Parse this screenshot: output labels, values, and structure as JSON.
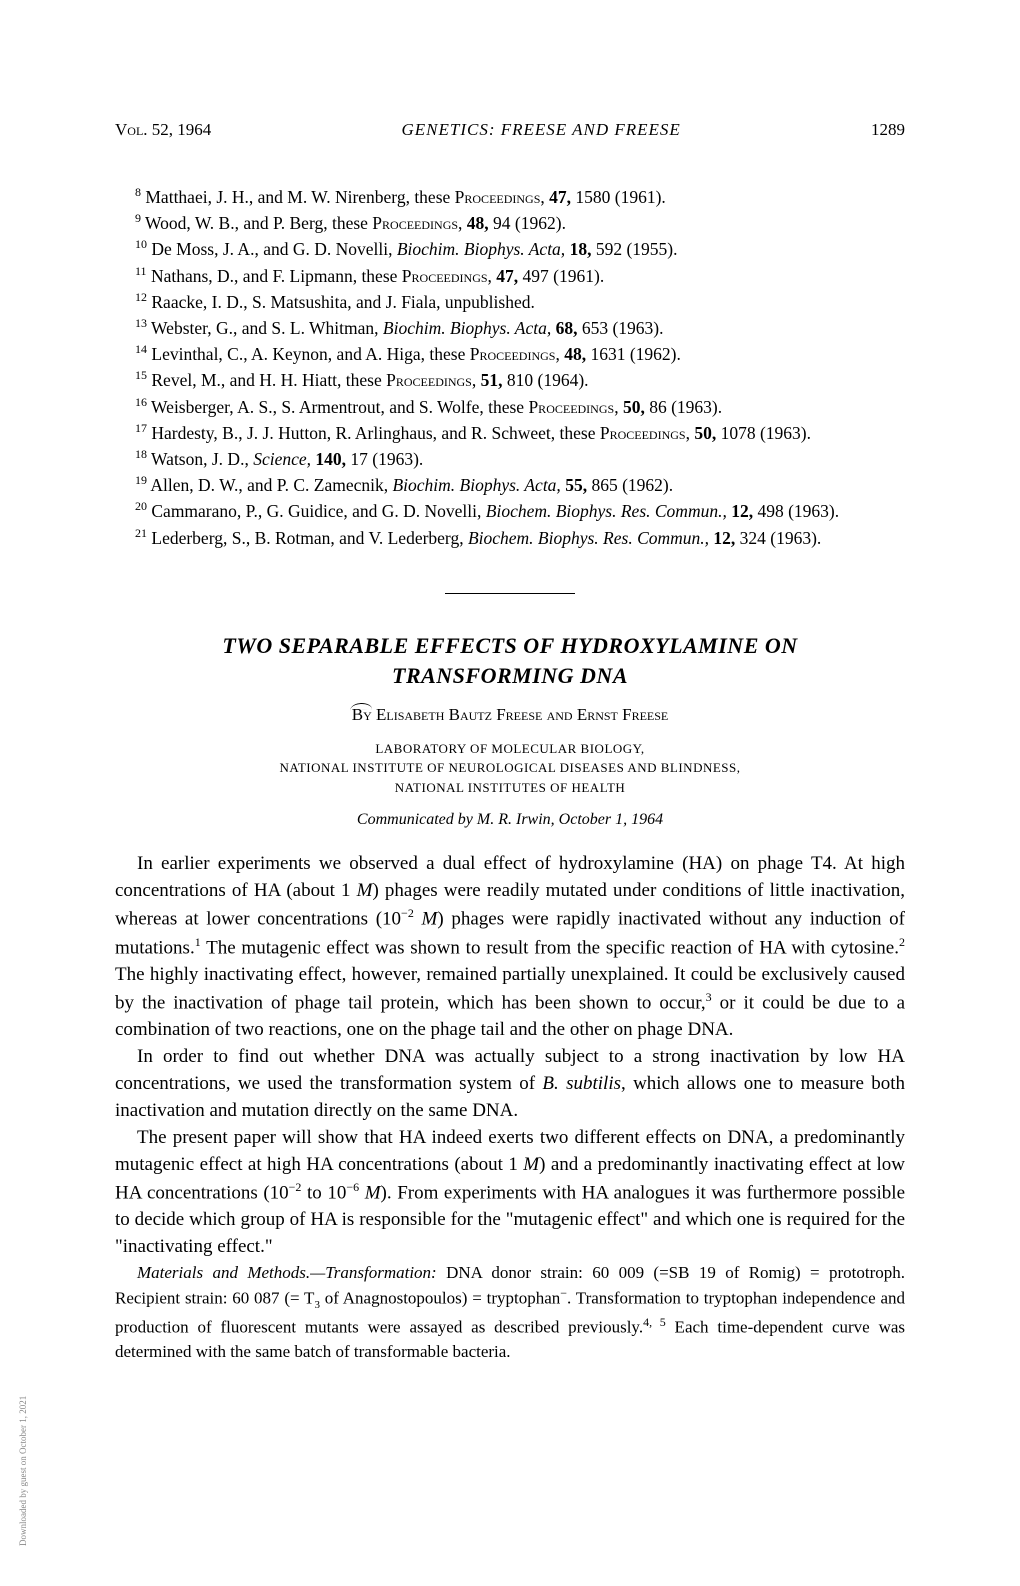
{
  "header": {
    "volume": "Vol. 52, 1964",
    "running_title": "GENETICS: FREESE AND FREESE",
    "page_number": "1289"
  },
  "references": [
    {
      "num": "8",
      "text": " Matthaei, J. H., and M. W. Nirenberg, these ",
      "smallcaps": "Proceedings",
      "suffix": ", ",
      "bold": "47,",
      "end": " 1580 (1961)."
    },
    {
      "num": "9",
      "text": " Wood, W. B., and P. Berg, these ",
      "smallcaps": "Proceedings",
      "suffix": ", ",
      "bold": "48,",
      "end": " 94 (1962)."
    },
    {
      "num": "10",
      "text": " De Moss, J. A., and G. D. Novelli, ",
      "italic": "Biochim. Biophys. Acta,",
      "suffix": " ",
      "bold": "18,",
      "end": " 592 (1955)."
    },
    {
      "num": "11",
      "text": " Nathans, D., and F. Lipmann, these ",
      "smallcaps": "Proceedings",
      "suffix": ", ",
      "bold": "47,",
      "end": " 497 (1961)."
    },
    {
      "num": "12",
      "text": " Raacke, I. D., S. Matsushita, and J. Fiala, unpublished.",
      "smallcaps": "",
      "suffix": "",
      "bold": "",
      "end": ""
    },
    {
      "num": "13",
      "text": " Webster, G., and S. L. Whitman, ",
      "italic": "Biochim. Biophys. Acta,",
      "suffix": " ",
      "bold": "68,",
      "end": " 653 (1963)."
    },
    {
      "num": "14",
      "text": " Levinthal, C., A. Keynon, and A. Higa, these ",
      "smallcaps": "Proceedings",
      "suffix": ", ",
      "bold": "48,",
      "end": " 1631 (1962)."
    },
    {
      "num": "15",
      "text": " Revel, M., and H. H. Hiatt, these ",
      "smallcaps": "Proceedings",
      "suffix": ", ",
      "bold": "51,",
      "end": " 810 (1964)."
    },
    {
      "num": "16",
      "text": " Weisberger, A. S., S. Armentrout, and S. Wolfe, these ",
      "smallcaps": "Proceedings",
      "suffix": ", ",
      "bold": "50,",
      "end": " 86 (1963)."
    },
    {
      "num": "17",
      "text": " Hardesty, B., J. J. Hutton, R. Arlinghaus, and R. Schweet, these ",
      "smallcaps": "Proceedings",
      "suffix": ", ",
      "bold": "50,",
      "end": " 1078 (1963)."
    },
    {
      "num": "18",
      "text": " Watson, J. D., ",
      "italic": "Science,",
      "suffix": " ",
      "bold": "140,",
      "end": " 17 (1963)."
    },
    {
      "num": "19",
      "text": " Allen, D. W., and P. C. Zamecnik, ",
      "italic": "Biochim. Biophys. Acta,",
      "suffix": " ",
      "bold": "55,",
      "end": " 865 (1962)."
    },
    {
      "num": "20",
      "text": " Cammarano, P., G. Guidice, and G. D. Novelli, ",
      "italic": "Biochem. Biophys. Res. Commun.,",
      "suffix": " ",
      "bold": "12,",
      "end": " 498 (1963)."
    },
    {
      "num": "21",
      "text": " Lederberg, S., B. Rotman, and V. Lederberg, ",
      "italic": "Biochem. Biophys. Res. Commun.,",
      "suffix": " ",
      "bold": "12,",
      "end": " 324 (1963)."
    }
  ],
  "article": {
    "title_line1": "TWO SEPARABLE EFFECTS OF HYDROXYLAMINE ON",
    "title_line2": "TRANSFORMING DNA",
    "by": "By ",
    "authors": "Elisabeth Bautz Freese and Ernst Freese",
    "affiliation_line1": "LABORATORY OF MOLECULAR BIOLOGY,",
    "affiliation_line2": "NATIONAL INSTITUTE OF NEUROLOGICAL DISEASES AND BLINDNESS,",
    "affiliation_line3": "NATIONAL INSTITUTES OF HEALTH",
    "communicated": "Communicated by M. R. Irwin, October 1, 1964"
  },
  "body": {
    "p1_a": "In earlier experiments we observed a dual effect of hydroxylamine (HA) on phage T4. At high concentrations of HA (about 1 ",
    "p1_M1": "M",
    "p1_b": ") phages were readily mutated under conditions of little inactivation, whereas at lower concentrations (10",
    "p1_exp1": "−2",
    "p1_sp": " ",
    "p1_M2": "M",
    "p1_c": ") phages were rapidly inactivated without any induction of mutations.",
    "p1_sup1": "1",
    "p1_d": " The mutagenic effect was shown to result from the specific reaction of HA with cytosine.",
    "p1_sup2": "2",
    "p1_e": " The highly inactivating effect, however, remained partially unexplained. It could be exclusively caused by the inactivation of phage tail protein, which has been shown to occur,",
    "p1_sup3": "3",
    "p1_f": " or it could be due to a combination of two reactions, one on the phage tail and the other on phage DNA.",
    "p2_a": "In order to find out whether DNA was actually subject to a strong inactivation by low HA concentrations, we used the transformation system of ",
    "p2_species": "B. subtilis",
    "p2_b": ", which allows one to measure both inactivation and mutation directly on the same DNA.",
    "p3_a": "The present paper will show that HA indeed exerts two different effects on DNA, a predominantly mutagenic effect at high HA concentrations (about 1 ",
    "p3_M1": "M",
    "p3_b": ") and a predominantly inactivating effect at low HA concentrations (10",
    "p3_exp1": "−2",
    "p3_c": " to 10",
    "p3_exp2": "−6",
    "p3_sp": " ",
    "p3_M2": "M",
    "p3_d": "). From experiments with HA analogues it was furthermore possible to decide which group of HA is responsible for the \"mutagenic effect\" and which one is required for the \"inactivating effect.\"",
    "p4_label": "Materials and Methods.—Transformation:",
    "p4_a": " DNA donor strain: 60 009 (=SB 19 of Romig) = prototroph. Recipient strain: 60 087 (= T",
    "p4_sub": "3",
    "p4_b": " of Anagnostopoulos) = tryptophan",
    "p4_sup_minus": "−",
    "p4_c": ". Transformation to tryptophan independence and production of fluorescent mutants were assayed as described previously.",
    "p4_sup45": "4, 5",
    "p4_d": " Each time-dependent curve was determined with the same batch of transformable bacteria."
  },
  "watermark": "Downloaded by guest on October 1, 2021"
}
